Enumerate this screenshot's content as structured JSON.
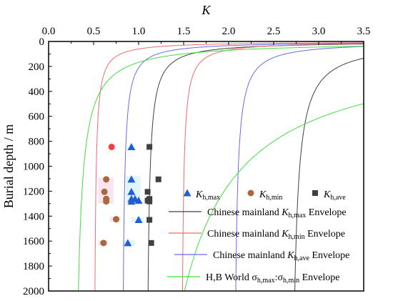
{
  "chart_data": {
    "type": "scatter",
    "x_axis": {
      "label": "K",
      "position": "top",
      "range": [
        0,
        3.5
      ],
      "ticks": [
        "0.0",
        "0.5",
        "1.0",
        "1.5",
        "2.0",
        "2.5",
        "3.0",
        "3.5"
      ]
    },
    "y_axis": {
      "label": "Burial depth / m",
      "range": [
        0,
        2000
      ],
      "inverted": true,
      "ticks": [
        "0",
        "200",
        "400",
        "600",
        "800",
        "1000",
        "1200",
        "1400",
        "1600",
        "1800",
        "2000"
      ]
    },
    "grid": false,
    "legend": {
      "placement": "bottom-right",
      "entries": [
        {
          "label": "K",
          "subscript": "h,max",
          "suffix": "",
          "marker": "triangle",
          "color": "#1f5fd6"
        },
        {
          "label": "K",
          "subscript": "h,min",
          "suffix": "",
          "marker": "circle",
          "color": "#a86a3c"
        },
        {
          "label": "K",
          "subscript": "h,ave",
          "suffix": "",
          "marker": "square",
          "color": "#404040"
        },
        {
          "prefix": "Chinese mainland ",
          "label": "K",
          "subscript": "h,max",
          "suffix": " Envelope",
          "marker": "line",
          "color": "#404040"
        },
        {
          "prefix": "Chinese mainland ",
          "label": "K",
          "subscript": "h,min",
          "suffix": " Envelope",
          "marker": "line",
          "color": "#f26b6b"
        },
        {
          "prefix": "Chinese mainland ",
          "label": "K",
          "subscript": "h,ave",
          "suffix": " Envelope",
          "marker": "line",
          "color": "#6a6ae8"
        },
        {
          "prefix": "H,B World ",
          "label": "σ",
          "subscript": "h,max",
          "mid": ":σ",
          "subscript2": "h,min",
          "suffix": " Envelope",
          "marker": "line",
          "color": "#3ee03e"
        }
      ]
    },
    "series": [
      {
        "name": "Kh,max",
        "kind": "points",
        "marker": "triangle",
        "color": "#1f5fd6",
        "points": [
          [
            0.92,
            845
          ],
          [
            0.92,
            1105
          ],
          [
            0.92,
            1205
          ],
          [
            0.92,
            1262
          ],
          [
            0.96,
            1262
          ],
          [
            1.0,
            1275
          ],
          [
            0.92,
            1282
          ],
          [
            1.0,
            1430
          ],
          [
            0.88,
            1615
          ]
        ]
      },
      {
        "name": "Kh,min",
        "kind": "points",
        "marker": "circle",
        "color": "#a86a3c",
        "points": [
          [
            0.64,
            1105
          ],
          [
            0.62,
            1205
          ],
          [
            0.64,
            1262
          ],
          [
            0.64,
            1282
          ],
          [
            0.75,
            1425
          ],
          [
            0.61,
            1615
          ]
        ]
      },
      {
        "name": "Kh,min (highlighted)",
        "kind": "points",
        "marker": "circle",
        "color": "#ff3b3b",
        "points": [
          [
            0.7,
            845
          ]
        ]
      },
      {
        "name": "Kh,ave",
        "kind": "points",
        "marker": "square",
        "color": "#404040",
        "points": [
          [
            1.12,
            845
          ],
          [
            1.22,
            1105
          ],
          [
            1.1,
            1205
          ],
          [
            1.12,
            1262
          ],
          [
            1.1,
            1275
          ],
          [
            1.12,
            1282
          ],
          [
            1.12,
            1430
          ],
          [
            1.14,
            1615
          ]
        ]
      }
    ],
    "highlight_boxes": [
      {
        "color": "#e2f4fb",
        "x_range": [
          0.86,
          1.02
        ],
        "depth_range": [
          1080,
          1300
        ]
      },
      {
        "color": "#f9e4ef",
        "x_range": [
          0.55,
          0.72
        ],
        "depth_range": [
          1090,
          1300
        ]
      },
      {
        "color": "#e2f4fb",
        "x_range": [
          0.92,
          1.06
        ],
        "depth_range": [
          1410,
          1450
        ]
      },
      {
        "color": "#f9e4ef",
        "x_range": [
          0.68,
          0.8
        ],
        "depth_range": [
          1405,
          1445
        ]
      },
      {
        "color": "#e2f4fb",
        "x_range": [
          0.82,
          0.96
        ],
        "depth_range": [
          1595,
          1635
        ]
      },
      {
        "color": "#f9e4ef",
        "x_range": [
          0.55,
          0.66
        ],
        "depth_range": [
          1595,
          1635
        ]
      }
    ],
    "envelope_curves": [
      {
        "name": "Chinese mainland Kh,max inner",
        "color": "#404040",
        "a": 1.08,
        "b": 50
      },
      {
        "name": "Chinese mainland Kh,max outer",
        "color": "#404040",
        "a": 2.68,
        "b": 110
      },
      {
        "name": "Chinese mainland Kh,min inner",
        "color": "#f26b6b",
        "a": 0.5,
        "b": 30
      },
      {
        "name": "Chinese mainland Kh,min outer",
        "color": "#f26b6b",
        "a": 1.47,
        "b": 36
      },
      {
        "name": "Chinese mainland Kh,ave inner",
        "color": "#6a6ae8",
        "a": 0.81,
        "b": 40
      },
      {
        "name": "Chinese mainland Kh,ave outer",
        "color": "#6a6ae8",
        "a": 2.05,
        "b": 58
      },
      {
        "name": "H,B World inner",
        "color": "#3ee03e",
        "a": 0.27,
        "b": 122
      },
      {
        "name": "H,B World outer",
        "color": "#3ee03e",
        "a": 0.85,
        "b": 1320
      }
    ]
  }
}
